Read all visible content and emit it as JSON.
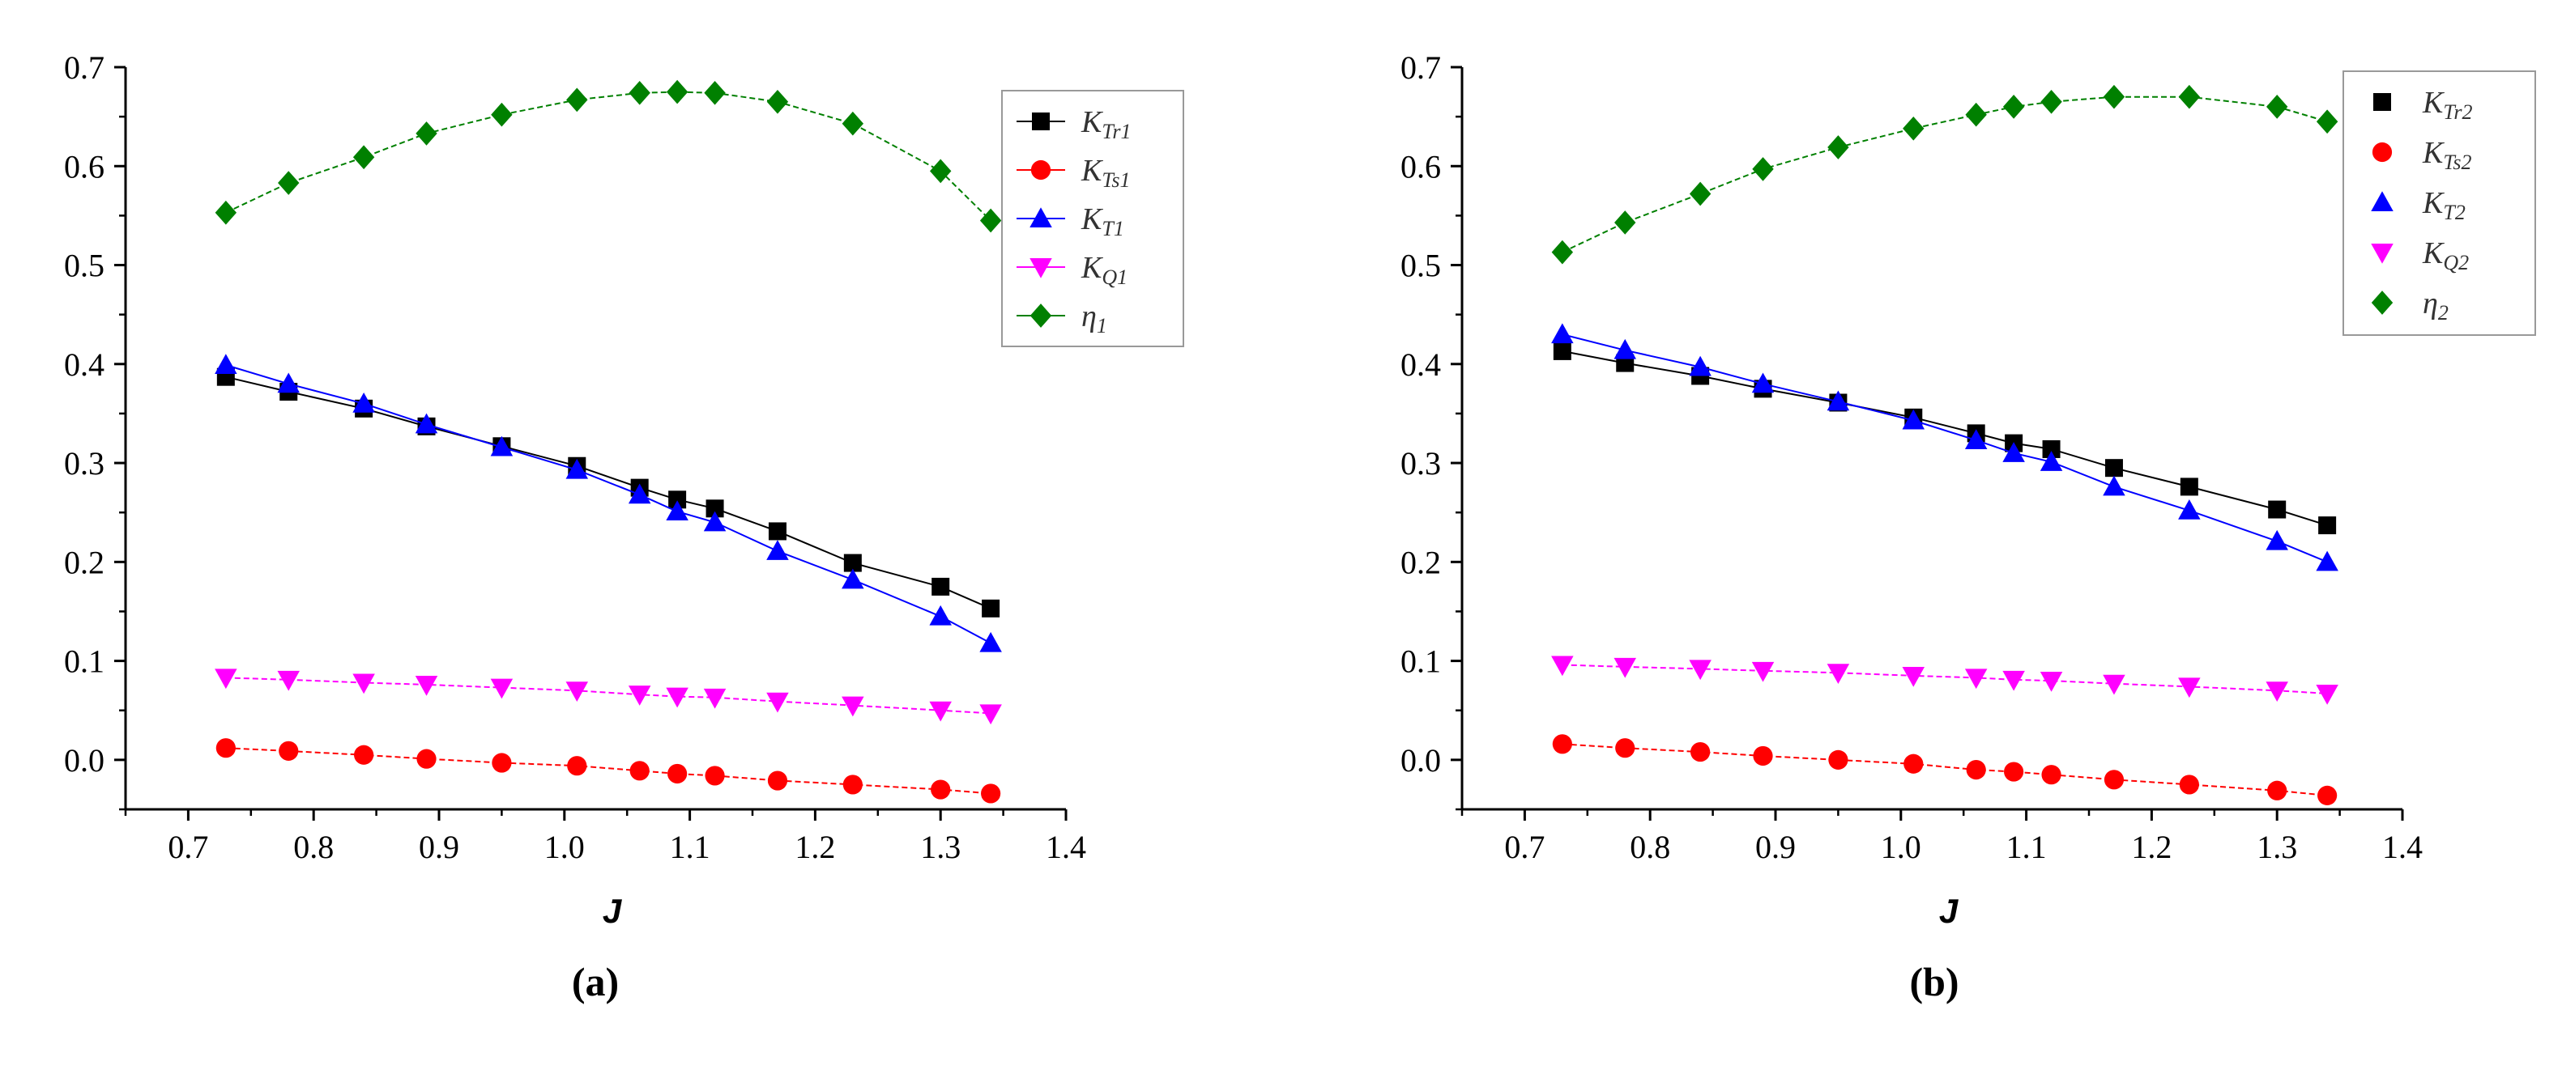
{
  "chart_data": [
    {
      "type": "line",
      "panel_label": "(a)",
      "xlabel": "J",
      "ylabel": "",
      "xlim": [
        0.65,
        1.4
      ],
      "ylim": [
        -0.05,
        0.7
      ],
      "x_ticks": [
        0.7,
        0.8,
        0.9,
        1.0,
        1.1,
        1.2,
        1.3,
        1.4
      ],
      "x_tick_labels": [
        "0.7",
        "0.8",
        "0.9",
        "1.0",
        "1.1",
        "1.2",
        "1.3",
        "1.4"
      ],
      "y_ticks": [
        0.0,
        0.1,
        0.2,
        0.3,
        0.4,
        0.5,
        0.6,
        0.7
      ],
      "y_tick_labels": [
        "0.0",
        "0.1",
        "0.2",
        "0.3",
        "0.4",
        "0.5",
        "0.6",
        "0.7"
      ],
      "legend_position": "top-right",
      "x": [
        0.73,
        0.78,
        0.84,
        0.89,
        0.95,
        1.01,
        1.06,
        1.09,
        1.12,
        1.17,
        1.23,
        1.3,
        1.34
      ],
      "series": [
        {
          "name": "K",
          "sub": "Tr1",
          "color": "#000000",
          "marker": "square",
          "values": [
            0.387,
            0.372,
            0.355,
            0.337,
            0.317,
            0.297,
            0.275,
            0.263,
            0.254,
            0.231,
            0.199,
            0.175,
            0.153
          ]
        },
        {
          "name": "K",
          "sub": "Ts1",
          "color": "#ff0000",
          "marker": "circle",
          "values": [
            0.012,
            0.009,
            0.005,
            0.001,
            -0.003,
            -0.006,
            -0.011,
            -0.014,
            -0.016,
            -0.021,
            -0.025,
            -0.03,
            -0.034
          ]
        },
        {
          "name": "K",
          "sub": "T1",
          "color": "#0000ff",
          "marker": "triangle-up",
          "values": [
            0.399,
            0.38,
            0.36,
            0.339,
            0.316,
            0.293,
            0.268,
            0.251,
            0.24,
            0.211,
            0.182,
            0.145,
            0.118
          ]
        },
        {
          "name": "K",
          "sub": "Q1",
          "color": "#ff00ff",
          "marker": "triangle-down",
          "values": [
            0.083,
            0.081,
            0.078,
            0.076,
            0.073,
            0.07,
            0.066,
            0.064,
            0.063,
            0.059,
            0.055,
            0.05,
            0.047
          ]
        },
        {
          "name": "η",
          "sub": "1",
          "color": "#008000",
          "marker": "diamond",
          "values": [
            0.553,
            0.583,
            0.609,
            0.633,
            0.652,
            0.667,
            0.674,
            0.675,
            0.674,
            0.665,
            0.643,
            0.595,
            0.545
          ]
        }
      ]
    },
    {
      "type": "line",
      "panel_label": "(b)",
      "xlabel": "J",
      "ylabel": "",
      "xlim": [
        0.65,
        1.4
      ],
      "ylim": [
        -0.05,
        0.7
      ],
      "x_ticks": [
        0.7,
        0.8,
        0.9,
        1.0,
        1.1,
        1.2,
        1.3,
        1.4
      ],
      "x_tick_labels": [
        "0.7",
        "0.8",
        "0.9",
        "1.0",
        "1.1",
        "1.2",
        "1.3",
        "1.4"
      ],
      "y_ticks": [
        0.0,
        0.1,
        0.2,
        0.3,
        0.4,
        0.5,
        0.6,
        0.7
      ],
      "y_tick_labels": [
        "0.0",
        "0.1",
        "0.2",
        "0.3",
        "0.4",
        "0.5",
        "0.6",
        "0.7"
      ],
      "legend_position": "top-right",
      "x": [
        0.73,
        0.78,
        0.84,
        0.89,
        0.95,
        1.01,
        1.06,
        1.09,
        1.12,
        1.17,
        1.23,
        1.3,
        1.34
      ],
      "series": [
        {
          "name": "K",
          "sub": "Tr2",
          "color": "#000000",
          "marker": "square",
          "values": [
            0.413,
            0.401,
            0.388,
            0.375,
            0.361,
            0.346,
            0.33,
            0.32,
            0.314,
            0.295,
            0.276,
            0.253,
            0.237
          ]
        },
        {
          "name": "K",
          "sub": "Ts2",
          "color": "#ff0000",
          "marker": "circle",
          "values": [
            0.016,
            0.012,
            0.008,
            0.004,
            0.0,
            -0.004,
            -0.01,
            -0.012,
            -0.015,
            -0.02,
            -0.025,
            -0.031,
            -0.036
          ]
        },
        {
          "name": "K",
          "sub": "T2",
          "color": "#0000ff",
          "marker": "triangle-up",
          "values": [
            0.43,
            0.414,
            0.397,
            0.38,
            0.362,
            0.343,
            0.323,
            0.31,
            0.301,
            0.276,
            0.252,
            0.221,
            0.2
          ]
        },
        {
          "name": "K",
          "sub": "Q2",
          "color": "#ff00ff",
          "marker": "triangle-down",
          "values": [
            0.096,
            0.094,
            0.092,
            0.09,
            0.088,
            0.085,
            0.083,
            0.081,
            0.08,
            0.077,
            0.074,
            0.07,
            0.067
          ]
        },
        {
          "name": "η",
          "sub": "2",
          "color": "#008000",
          "marker": "diamond",
          "values": [
            0.513,
            0.543,
            0.572,
            0.597,
            0.619,
            0.638,
            0.652,
            0.66,
            0.665,
            0.67,
            0.67,
            0.66,
            0.645
          ]
        }
      ]
    }
  ]
}
